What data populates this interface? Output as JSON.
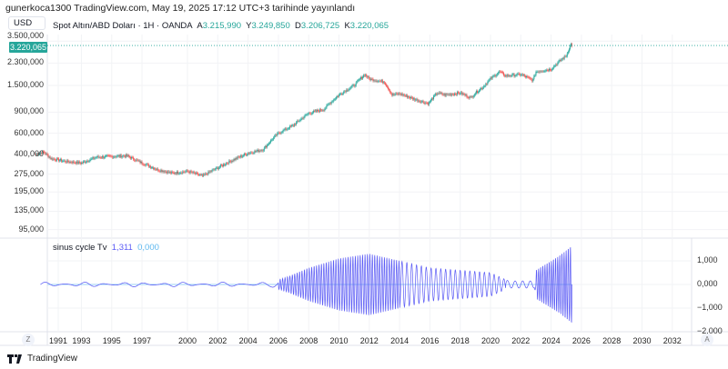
{
  "published": "gunerkoca1300 TradingView.com, May 19, 2025 17:12 UTC+3 tarihinde yayınlandı",
  "currency": "USD",
  "legend": {
    "symbol": "Spot Altın/ABD Doları · 1H · OANDA",
    "o_label": "A",
    "o": "3.215,990",
    "h_label": "Y",
    "h": "3.249,850",
    "l_label": "D",
    "l": "3.206,725",
    "c_label": "K",
    "c": "3.220,065"
  },
  "last_price": "3.220,065",
  "price_axis": [
    "3.500,000",
    "2.300,000",
    "1.500,000",
    "900,000",
    "600,000",
    "400,000",
    "275,000",
    "195,000",
    "135,000",
    "95,000"
  ],
  "oscillator": {
    "name": "sinus cycle Tv",
    "value1": "1,311",
    "value2": "0,000",
    "axis": [
      "1,000",
      "0,000",
      "−1,000",
      "−2,000"
    ]
  },
  "time_axis": [
    "1991",
    "1993",
    "1995",
    "1997",
    "2000",
    "2002",
    "2004",
    "2006",
    "2008",
    "2010",
    "2012",
    "2014",
    "2016",
    "2018",
    "2020",
    "2022",
    "2024",
    "2026",
    "2028",
    "2030",
    "2032"
  ],
  "buttons": {
    "z": "Z",
    "a": "A"
  },
  "footer": "TradingView",
  "colors": {
    "up": "#26a69a",
    "down": "#ef5350",
    "osc": "#5b5bf5",
    "last": "#26a69a"
  },
  "chart_data": {
    "type": "line",
    "title": "Spot Altın/ABD Doları · 1H · OANDA",
    "scale": "log",
    "ylim": [
      80,
      3600
    ],
    "price_series": {
      "x": [
        1990.0,
        1990.5,
        1991,
        1992,
        1993,
        1994,
        1995,
        1996,
        1997,
        1998,
        1999,
        2000,
        2001,
        2002,
        2003,
        2004,
        2005,
        2006,
        2007,
        2008,
        2009,
        2010,
        2011,
        2011.7,
        2012,
        2013,
        2013.5,
        2014,
        2015,
        2015.9,
        2016.5,
        2017,
        2018,
        2018.7,
        2019,
        2019.5,
        2020,
        2020.6,
        2021,
        2022,
        2022.8,
        2023,
        2024,
        2024.5,
        2025,
        2025.3,
        2025.38
      ],
      "y": [
        400,
        420,
        370,
        350,
        340,
        380,
        385,
        390,
        340,
        300,
        280,
        290,
        265,
        310,
        360,
        410,
        440,
        600,
        700,
        880,
        950,
        1250,
        1500,
        1850,
        1700,
        1600,
        1250,
        1280,
        1150,
        1060,
        1300,
        1250,
        1300,
        1180,
        1300,
        1450,
        1700,
        1950,
        1800,
        1850,
        1650,
        1950,
        2050,
        2350,
        2650,
        3300,
        3220
      ]
    },
    "oscillator_series": {
      "name": "sinus cycle Tv",
      "x": [
        1990,
        2005.5,
        2006.5,
        2008,
        2010,
        2012,
        2014,
        2016,
        2018,
        2020,
        2021.2,
        2022.9,
        2023,
        2024.5,
        2025.38
      ],
      "amplitude": [
        100,
        100,
        300,
        700,
        1100,
        1300,
        1000,
        700,
        600,
        500,
        150,
        150,
        600,
        1200,
        1650
      ],
      "ylim": [
        -2000,
        1800
      ]
    }
  }
}
